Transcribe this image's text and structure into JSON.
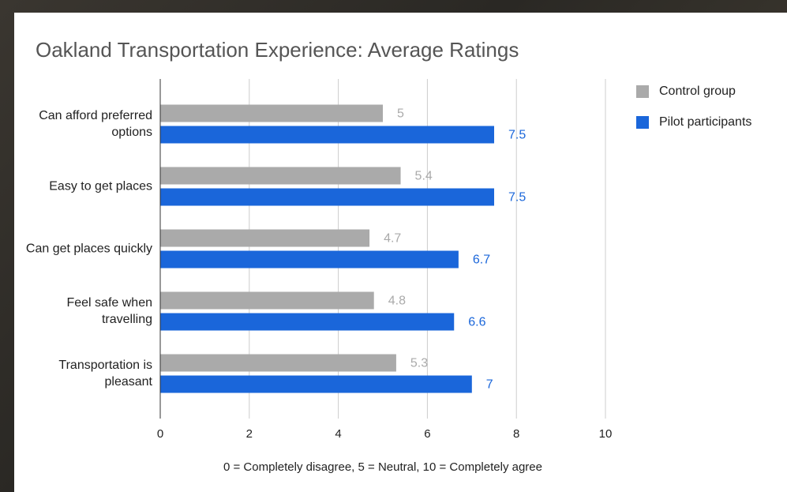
{
  "chart_data": {
    "type": "bar",
    "orientation": "horizontal",
    "title": "Oakland Transportation Experience: Average Ratings",
    "x_label": "0 = Completely disagree, 5 = Neutral, 10 = Completely agree",
    "categories": [
      "Can afford preferred options",
      "Easy to get places",
      "Can get places quickly",
      "Feel safe when travelling",
      "Transportation is pleasant"
    ],
    "series": [
      {
        "name": "Control group",
        "color": "#aaaaaa",
        "values": [
          5,
          5.4,
          4.7,
          4.8,
          5.3
        ]
      },
      {
        "name": "Pilot participants",
        "color": "#1a66da",
        "values": [
          7.5,
          7.5,
          6.7,
          6.6,
          7
        ]
      }
    ],
    "xlim": [
      0,
      10
    ],
    "xticks": [
      0,
      2,
      4,
      6,
      8,
      10
    ],
    "grid": true,
    "legend": "right"
  }
}
